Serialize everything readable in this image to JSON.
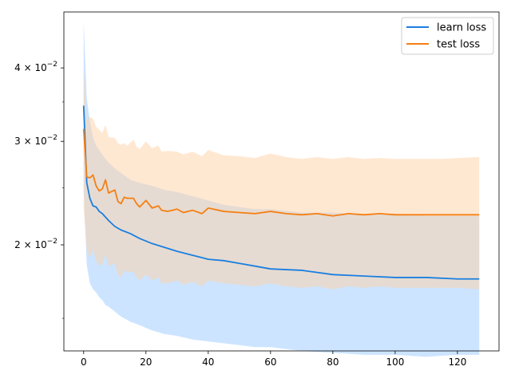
{
  "chart_data": {
    "type": "line",
    "title": "",
    "xlabel": "",
    "ylabel": "",
    "xlim": [
      -6.35,
      133.35
    ],
    "ylim": [
      0.0132,
      0.0498
    ],
    "y_scale": "log",
    "grid": false,
    "legend_position": "top-right",
    "x_ticks": [
      0,
      20,
      40,
      60,
      80,
      100,
      120
    ],
    "x_tick_labels": [
      "0",
      "20",
      "40",
      "60",
      "80",
      "100",
      "120"
    ],
    "y_ticks": [
      0.02,
      0.03,
      0.04
    ],
    "y_tick_labels": [
      {
        "mantissa": "2",
        "base": "10",
        "exp": "−2"
      },
      {
        "mantissa": "3",
        "base": "10",
        "exp": "−2"
      },
      {
        "mantissa": "4",
        "base": "10",
        "exp": "−2"
      }
    ],
    "series": [
      {
        "name": "learn loss",
        "color": "#1f77b4",
        "line_color": "#1a7fe0",
        "band_color": "#99c9ff",
        "x": [
          0,
          1,
          2,
          3,
          4,
          5,
          6,
          7,
          8,
          10,
          12,
          15,
          18,
          22,
          26,
          30,
          35,
          40,
          45,
          50,
          55,
          60,
          70,
          80,
          90,
          100,
          110,
          120,
          127
        ],
        "y": [
          0.0345,
          0.0255,
          0.024,
          0.0233,
          0.0232,
          0.0228,
          0.0226,
          0.0223,
          0.022,
          0.0215,
          0.0212,
          0.0209,
          0.0205,
          0.0201,
          0.0198,
          0.0195,
          0.0192,
          0.0189,
          0.0188,
          0.0186,
          0.0184,
          0.0182,
          0.0181,
          0.0178,
          0.0177,
          0.0176,
          0.0176,
          0.0175,
          0.0175
        ],
        "band_upper": [
          0.048,
          0.0355,
          0.0325,
          0.0305,
          0.0295,
          0.029,
          0.0285,
          0.028,
          0.0276,
          0.027,
          0.0265,
          0.0258,
          0.0255,
          0.0252,
          0.0248,
          0.0246,
          0.0242,
          0.0238,
          0.0234,
          0.0232,
          0.023,
          0.023,
          0.0227,
          0.0227,
          0.0225,
          0.0226,
          0.0224,
          0.0224,
          0.0224
        ],
        "band_lower": [
          0.0248,
          0.0185,
          0.0172,
          0.0168,
          0.0166,
          0.0163,
          0.0161,
          0.0158,
          0.0157,
          0.0154,
          0.0151,
          0.0148,
          0.0146,
          0.0143,
          0.0141,
          0.014,
          0.0138,
          0.0137,
          0.0136,
          0.0135,
          0.0134,
          0.0134,
          0.0132,
          0.0131,
          0.013,
          0.013,
          0.0129,
          0.013,
          0.013
        ]
      },
      {
        "name": "test loss",
        "color": "#ff7f0e",
        "line_color": "#f57f13",
        "band_color": "#ffd2a6",
        "x": [
          0,
          1,
          2,
          3,
          4,
          5,
          6,
          7,
          8,
          10,
          11,
          12,
          13,
          14,
          16,
          17,
          18,
          20,
          22,
          24,
          25,
          27,
          30,
          32,
          35,
          38,
          40,
          45,
          50,
          55,
          60,
          65,
          70,
          75,
          80,
          85,
          90,
          95,
          100,
          105,
          110,
          115,
          120,
          127
        ],
        "y": [
          0.0315,
          0.0261,
          0.026,
          0.0263,
          0.0252,
          0.0247,
          0.0249,
          0.0258,
          0.0245,
          0.0248,
          0.0237,
          0.0235,
          0.0241,
          0.024,
          0.024,
          0.0235,
          0.0232,
          0.0238,
          0.0231,
          0.0233,
          0.0229,
          0.0228,
          0.023,
          0.0227,
          0.0229,
          0.0226,
          0.0231,
          0.0228,
          0.0227,
          0.0226,
          0.0228,
          0.0226,
          0.0225,
          0.0226,
          0.0224,
          0.0226,
          0.0225,
          0.0226,
          0.0225,
          0.0225,
          0.0225,
          0.0225,
          0.0225,
          0.0225
        ],
        "band_upper": [
          0.04,
          0.0325,
          0.033,
          0.0328,
          0.0318,
          0.0314,
          0.031,
          0.032,
          0.0305,
          0.0304,
          0.0298,
          0.0296,
          0.0298,
          0.0295,
          0.0302,
          0.0294,
          0.0291,
          0.03,
          0.0292,
          0.0295,
          0.0288,
          0.0289,
          0.0288,
          0.0285,
          0.0288,
          0.0283,
          0.029,
          0.0284,
          0.0283,
          0.0281,
          0.0286,
          0.0282,
          0.028,
          0.0282,
          0.028,
          0.0282,
          0.028,
          0.0281,
          0.028,
          0.028,
          0.028,
          0.028,
          0.0281,
          0.0282
        ],
        "band_lower": [
          0.023,
          0.0196,
          0.019,
          0.0196,
          0.0188,
          0.0184,
          0.0186,
          0.0193,
          0.0184,
          0.0186,
          0.0178,
          0.0176,
          0.0181,
          0.018,
          0.018,
          0.0176,
          0.0174,
          0.0178,
          0.0174,
          0.0176,
          0.0172,
          0.0172,
          0.0174,
          0.0171,
          0.0173,
          0.017,
          0.0174,
          0.0172,
          0.0171,
          0.017,
          0.0172,
          0.017,
          0.0169,
          0.017,
          0.0168,
          0.017,
          0.0169,
          0.017,
          0.0169,
          0.0169,
          0.0169,
          0.0169,
          0.0169,
          0.0168
        ]
      }
    ]
  }
}
